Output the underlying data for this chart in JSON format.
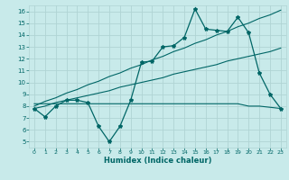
{
  "xlabel": "Humidex (Indice chaleur)",
  "ylabel": "",
  "bg_color": "#c8eaea",
  "grid_color": "#b0d4d4",
  "line_color": "#006666",
  "xlim": [
    -0.5,
    23.5
  ],
  "ylim": [
    4.5,
    16.5
  ],
  "xticks": [
    0,
    1,
    2,
    3,
    4,
    5,
    6,
    7,
    8,
    9,
    10,
    11,
    12,
    13,
    14,
    15,
    16,
    17,
    18,
    19,
    20,
    21,
    22,
    23
  ],
  "yticks": [
    5,
    6,
    7,
    8,
    9,
    10,
    11,
    12,
    13,
    14,
    15,
    16
  ],
  "main_series": [
    7.8,
    7.1,
    8.0,
    8.5,
    8.5,
    8.3,
    6.3,
    5.0,
    6.3,
    8.5,
    11.7,
    11.8,
    13.0,
    13.1,
    13.8,
    16.2,
    14.5,
    14.4,
    14.3,
    15.5,
    14.2,
    10.8,
    9.0,
    7.8
  ],
  "flat_series": [
    8.2,
    8.2,
    8.2,
    8.2,
    8.2,
    8.2,
    8.2,
    8.2,
    8.2,
    8.2,
    8.2,
    8.2,
    8.2,
    8.2,
    8.2,
    8.2,
    8.2,
    8.2,
    8.2,
    8.2,
    8.0,
    8.0,
    7.9,
    7.8
  ],
  "trend1": [
    7.8,
    8.0,
    8.3,
    8.5,
    8.7,
    8.9,
    9.1,
    9.3,
    9.6,
    9.8,
    10.0,
    10.2,
    10.4,
    10.7,
    10.9,
    11.1,
    11.3,
    11.5,
    11.8,
    12.0,
    12.2,
    12.4,
    12.6,
    12.9
  ],
  "trend2": [
    8.0,
    8.4,
    8.7,
    9.1,
    9.4,
    9.8,
    10.1,
    10.5,
    10.8,
    11.2,
    11.5,
    11.9,
    12.2,
    12.6,
    12.9,
    13.3,
    13.6,
    14.0,
    14.3,
    14.7,
    15.0,
    15.4,
    15.7,
    16.1
  ]
}
